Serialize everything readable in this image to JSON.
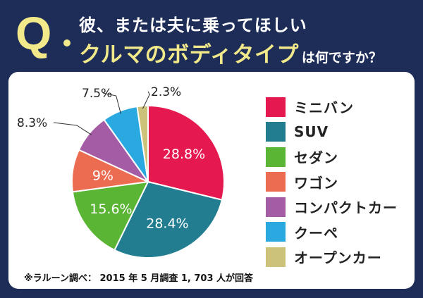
{
  "header": {
    "q_letter": "Q",
    "line1": "彼、または夫に乗ってほしい",
    "line2_emphasis": "クルマのボディタイプ",
    "line2_tail": "は何ですか？"
  },
  "chart_data": {
    "type": "pie",
    "categories": [
      "ミニバン",
      "SUV",
      "セダン",
      "ワゴン",
      "コンパクトカー",
      "クーペ",
      "オープンカー"
    ],
    "values": [
      28.8,
      28.4,
      15.6,
      9,
      8.3,
      7.5,
      2.3
    ],
    "labels": [
      "28.8%",
      "28.4%",
      "15.6%",
      "9%",
      "8.3%",
      "7.5%",
      "2.3%"
    ],
    "colors": [
      "#e5184f",
      "#237d91",
      "#5bb535",
      "#ec6c52",
      "#a45ca5",
      "#2aa9e1",
      "#ccc27a"
    ],
    "legend_position": "right"
  },
  "footnote": "※ラルーン調べ： 2015 年 5 月調査 1, 703 人が回答"
}
